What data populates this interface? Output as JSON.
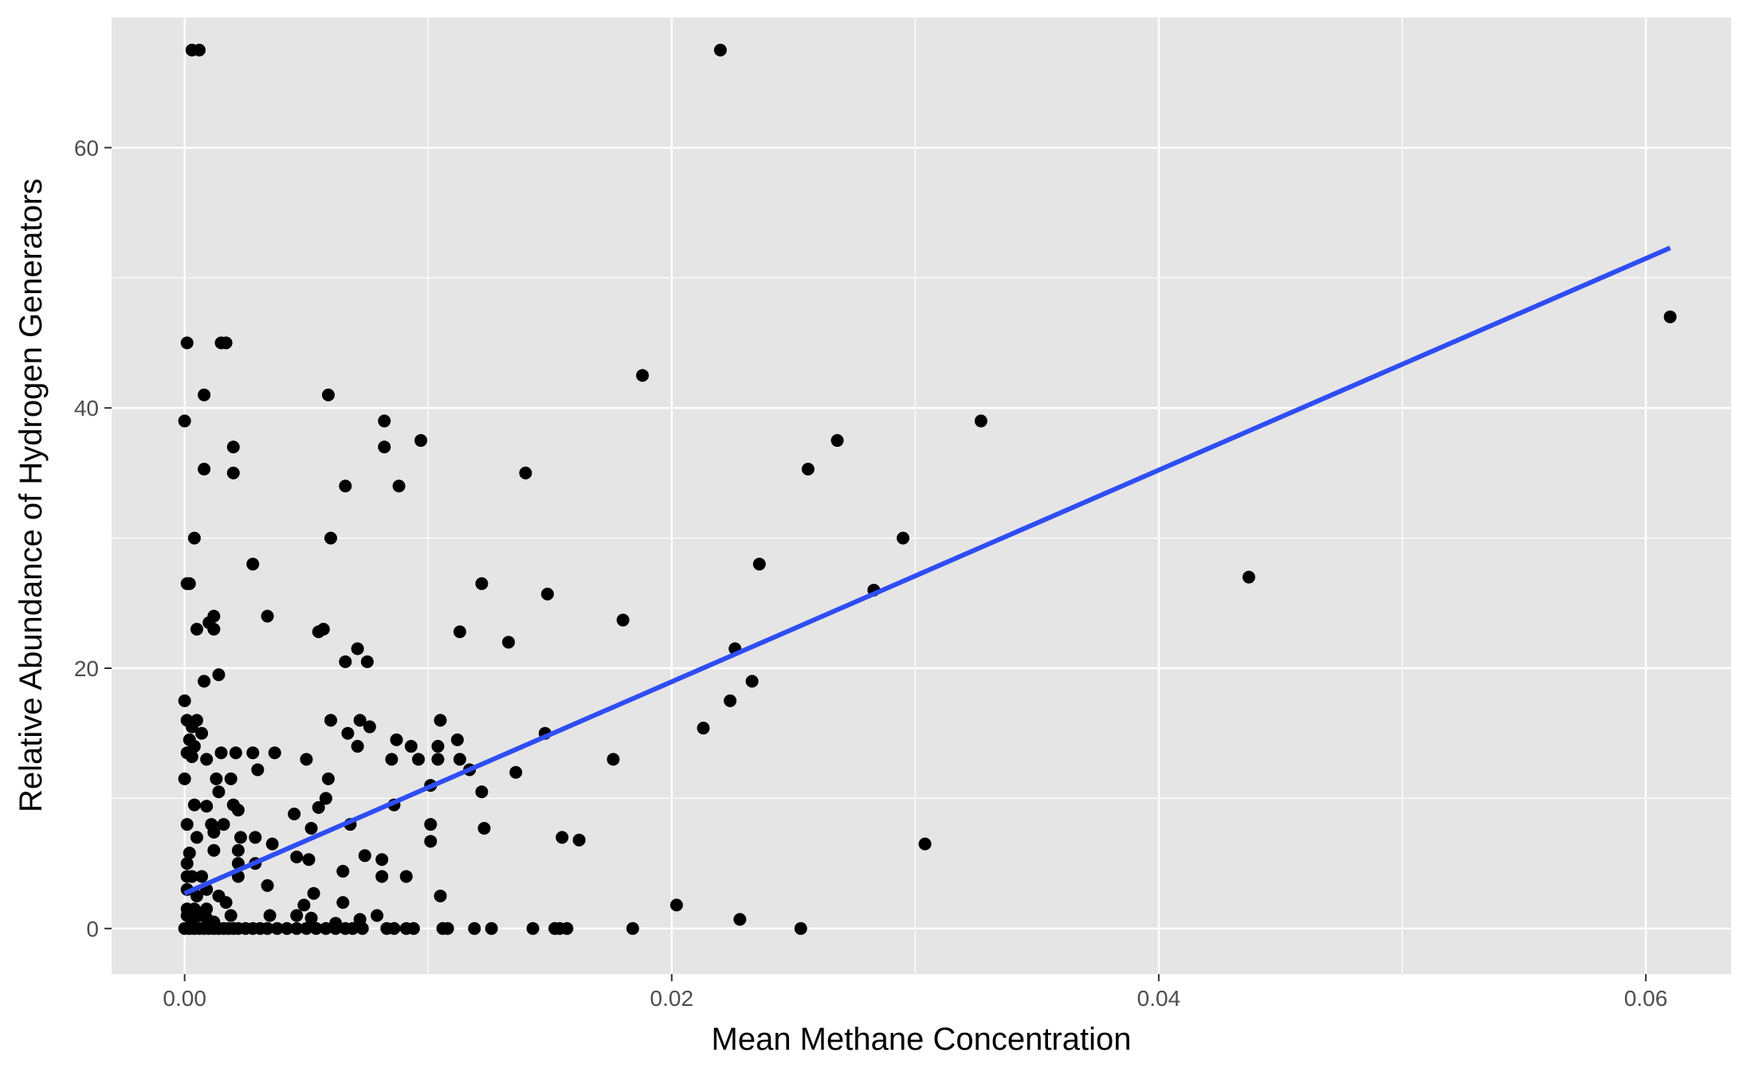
{
  "chart_data": {
    "type": "scatter",
    "title": "",
    "xlabel": "Mean Methane Concentration",
    "ylabel": "Relative Abundance of Hydrogen Generators",
    "xlim": [
      -0.003,
      0.0635
    ],
    "ylim": [
      -3.5,
      70
    ],
    "x_ticks": [
      0.0,
      0.02,
      0.04,
      0.06
    ],
    "x_tick_labels": [
      "0.00",
      "0.02",
      "0.04",
      "0.06"
    ],
    "y_ticks": [
      0,
      20,
      40,
      60
    ],
    "y_tick_labels": [
      "0",
      "20",
      "40",
      "60"
    ],
    "grid": true,
    "legend": "none",
    "colors": {
      "panel": "#e5e5e5",
      "grid": "#ffffff",
      "points": "#000000",
      "fit_line": "#2f4df5",
      "tick_label": "#4d4d4d",
      "axis_title": "#000000"
    },
    "series": [
      {
        "type": "scatter",
        "points": [
          [
            0.0003,
            67.5
          ],
          [
            0.0006,
            67.5
          ],
          [
            0.022,
            67.5
          ],
          [
            0.0001,
            45
          ],
          [
            0.0015,
            45
          ],
          [
            0.0017,
            45
          ],
          [
            0.0,
            39
          ],
          [
            0.0008,
            41
          ],
          [
            0.0059,
            41
          ],
          [
            0.0082,
            39
          ],
          [
            0.0082,
            37
          ],
          [
            0.0097,
            37.5
          ],
          [
            0.0008,
            35.3
          ],
          [
            0.002,
            37
          ],
          [
            0.002,
            35
          ],
          [
            0.0066,
            34
          ],
          [
            0.0088,
            34
          ],
          [
            0.014,
            35
          ],
          [
            0.0004,
            30
          ],
          [
            0.006,
            30
          ],
          [
            0.0001,
            26.5
          ],
          [
            0.0002,
            26.5
          ],
          [
            0.0028,
            28
          ],
          [
            0.0122,
            26.5
          ],
          [
            0.0149,
            25.7
          ],
          [
            0.0188,
            42.5
          ],
          [
            0.0256,
            35.3
          ],
          [
            0.0268,
            37.5
          ],
          [
            0.0327,
            39
          ],
          [
            0.0295,
            30
          ],
          [
            0.0236,
            28
          ],
          [
            0.0283,
            26
          ],
          [
            0.0437,
            27
          ],
          [
            0.061,
            47
          ],
          [
            0.0005,
            23
          ],
          [
            0.001,
            23.5
          ],
          [
            0.0012,
            24
          ],
          [
            0.0012,
            23
          ],
          [
            0.0034,
            24
          ],
          [
            0.0055,
            22.8
          ],
          [
            0.0057,
            23
          ],
          [
            0.0071,
            21.5
          ],
          [
            0.0066,
            20.5
          ],
          [
            0.0075,
            20.5
          ],
          [
            0.0113,
            22.8
          ],
          [
            0.0133,
            22
          ],
          [
            0.018,
            23.7
          ],
          [
            0.0226,
            21.5
          ],
          [
            0.0008,
            19
          ],
          [
            0.0014,
            19.5
          ],
          [
            0.0233,
            19
          ],
          [
            0.0224,
            17.5
          ],
          [
            0.0213,
            15.4
          ],
          [
            0.0,
            17.5
          ],
          [
            0.0001,
            16
          ],
          [
            0.0003,
            15.5
          ],
          [
            0.0005,
            16
          ],
          [
            0.0007,
            15
          ],
          [
            0.0002,
            14.5
          ],
          [
            0.0004,
            14
          ],
          [
            0.0001,
            13.5
          ],
          [
            0.0003,
            13.2
          ],
          [
            0.0009,
            13
          ],
          [
            0.0015,
            13.5
          ],
          [
            0.0021,
            13.5
          ],
          [
            0.0028,
            13.5
          ],
          [
            0.0037,
            13.5
          ],
          [
            0.006,
            16
          ],
          [
            0.0067,
            15
          ],
          [
            0.0072,
            16
          ],
          [
            0.0076,
            15.5
          ],
          [
            0.0071,
            14
          ],
          [
            0.0087,
            14.5
          ],
          [
            0.0093,
            14
          ],
          [
            0.0085,
            13
          ],
          [
            0.0096,
            13
          ],
          [
            0.0104,
            14
          ],
          [
            0.0105,
            16
          ],
          [
            0.0104,
            13
          ],
          [
            0.0112,
            14.5
          ],
          [
            0.0113,
            13
          ],
          [
            0.0117,
            12.2
          ],
          [
            0.0136,
            12
          ],
          [
            0.0148,
            15
          ],
          [
            0.0176,
            13
          ],
          [
            0.0,
            11.5
          ],
          [
            0.0013,
            11.5
          ],
          [
            0.0019,
            11.5
          ],
          [
            0.003,
            12.2
          ],
          [
            0.005,
            13
          ],
          [
            0.0059,
            11.5
          ],
          [
            0.0101,
            11
          ],
          [
            0.0122,
            10.5
          ],
          [
            0.0004,
            9.5
          ],
          [
            0.0009,
            9.4
          ],
          [
            0.002,
            9.5
          ],
          [
            0.0022,
            9.1
          ],
          [
            0.0014,
            10.5
          ],
          [
            0.0045,
            8.8
          ],
          [
            0.0055,
            9.3
          ],
          [
            0.0058,
            10
          ],
          [
            0.0086,
            9.5
          ],
          [
            0.0001,
            8
          ],
          [
            0.0011,
            8
          ],
          [
            0.0016,
            8
          ],
          [
            0.0012,
            7.4
          ],
          [
            0.0005,
            7
          ],
          [
            0.0023,
            7
          ],
          [
            0.0029,
            7
          ],
          [
            0.0036,
            6.5
          ],
          [
            0.0052,
            7.7
          ],
          [
            0.0068,
            8
          ],
          [
            0.0101,
            8
          ],
          [
            0.0101,
            6.7
          ],
          [
            0.0123,
            7.7
          ],
          [
            0.0155,
            7
          ],
          [
            0.0162,
            6.8
          ],
          [
            0.0304,
            6.5
          ],
          [
            0.0002,
            5.8
          ],
          [
            0.0001,
            5
          ],
          [
            0.0012,
            6
          ],
          [
            0.0022,
            6
          ],
          [
            0.0022,
            5
          ],
          [
            0.0029,
            5
          ],
          [
            0.0046,
            5.5
          ],
          [
            0.0051,
            5.3
          ],
          [
            0.0074,
            5.6
          ],
          [
            0.0081,
            5.3
          ],
          [
            0.0001,
            4
          ],
          [
            0.0003,
            4
          ],
          [
            0.0007,
            4
          ],
          [
            0.0022,
            4
          ],
          [
            0.0065,
            4.4
          ],
          [
            0.0081,
            4
          ],
          [
            0.0091,
            4
          ],
          [
            0.0034,
            3.3
          ],
          [
            0.0001,
            3
          ],
          [
            0.0005,
            2.5
          ],
          [
            0.0009,
            3
          ],
          [
            0.0014,
            2.5
          ],
          [
            0.0053,
            2.7
          ],
          [
            0.0065,
            2
          ],
          [
            0.0105,
            2.5
          ],
          [
            0.0202,
            1.8
          ],
          [
            0.0001,
            1.5
          ],
          [
            0.0004,
            1.5
          ],
          [
            0.0009,
            1.5
          ],
          [
            0.0017,
            2
          ],
          [
            0.0049,
            1.8
          ],
          [
            0.0001,
            1
          ],
          [
            0.0003,
            0.5
          ],
          [
            0.0006,
            1
          ],
          [
            0.0009,
            0.8
          ],
          [
            0.0012,
            0.5
          ],
          [
            0.0019,
            1
          ],
          [
            0.0035,
            1
          ],
          [
            0.0046,
            1
          ],
          [
            0.0052,
            0.8
          ],
          [
            0.0062,
            0.4
          ],
          [
            0.0072,
            0.7
          ],
          [
            0.0079,
            1
          ],
          [
            0.0228,
            0.7
          ],
          [
            0.0,
            0
          ],
          [
            0.0002,
            0
          ],
          [
            0.0004,
            0
          ],
          [
            0.0006,
            0
          ],
          [
            0.0008,
            0
          ],
          [
            0.001,
            0
          ],
          [
            0.0012,
            0
          ],
          [
            0.0014,
            0
          ],
          [
            0.0016,
            0
          ],
          [
            0.0018,
            0
          ],
          [
            0.002,
            0
          ],
          [
            0.0022,
            0
          ],
          [
            0.0025,
            0
          ],
          [
            0.0028,
            0
          ],
          [
            0.0031,
            0
          ],
          [
            0.0034,
            0
          ],
          [
            0.0038,
            0
          ],
          [
            0.0042,
            0
          ],
          [
            0.0046,
            0
          ],
          [
            0.005,
            0
          ],
          [
            0.0054,
            0
          ],
          [
            0.0058,
            0
          ],
          [
            0.0062,
            0
          ],
          [
            0.0066,
            0
          ],
          [
            0.0069,
            0
          ],
          [
            0.0073,
            0
          ],
          [
            0.0083,
            0
          ],
          [
            0.0086,
            0
          ],
          [
            0.0091,
            0
          ],
          [
            0.0094,
            0
          ],
          [
            0.0106,
            0
          ],
          [
            0.0108,
            0
          ],
          [
            0.0119,
            0
          ],
          [
            0.0126,
            0
          ],
          [
            0.0143,
            0
          ],
          [
            0.0152,
            0
          ],
          [
            0.0154,
            0
          ],
          [
            0.0157,
            0
          ],
          [
            0.0184,
            0
          ],
          [
            0.0253,
            0
          ]
        ]
      },
      {
        "type": "line",
        "points": [
          [
            0.0,
            2.7
          ],
          [
            0.061,
            52.3
          ]
        ]
      }
    ]
  }
}
